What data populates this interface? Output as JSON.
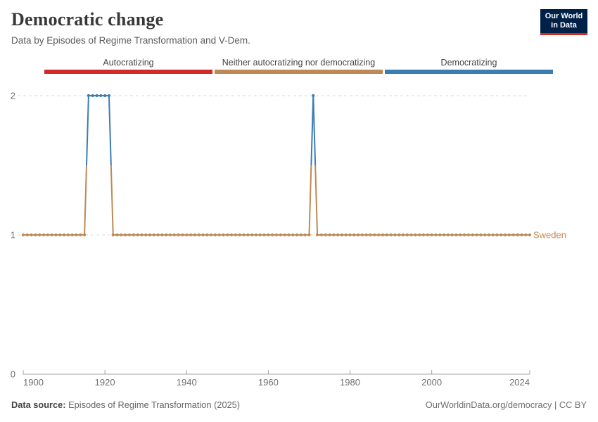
{
  "header": {
    "title": "Democratic change",
    "subtitle": "Data by Episodes of Regime Transformation and V-Dem.",
    "logo": {
      "line1": "Our World",
      "line2": "in Data",
      "bg_color": "#002147",
      "accent_color": "#d42b21"
    }
  },
  "legend": {
    "items": [
      {
        "label": "Autocratizing",
        "color": "#d22a28"
      },
      {
        "label": "Neither autocratizing nor democratizing",
        "color": "#bd8a55"
      },
      {
        "label": "Democratizing",
        "color": "#3a7cb4"
      }
    ]
  },
  "chart_data": {
    "type": "line",
    "title": "Democratic change",
    "xlabel": "",
    "ylabel": "",
    "xlim": [
      1900,
      2024
    ],
    "ylim": [
      0,
      2
    ],
    "x_ticks": [
      1900,
      1920,
      1940,
      1960,
      1980,
      2000,
      2024
    ],
    "y_ticks": [
      0,
      1,
      2
    ],
    "grid": "horizontal dashed gridlines at y=1 and y=2",
    "legend_position": "top categorical bins",
    "value_meaning": {
      "1": "Neither autocratizing nor democratizing",
      "2": "Democratizing"
    },
    "value_colors": {
      "1": "#bd8a55",
      "2": "#3a7cb4"
    },
    "episodes": [
      {
        "years": "1916-1921",
        "value": 2,
        "category": "Democratizing"
      },
      {
        "years": "1971",
        "value": 2,
        "category": "Democratizing"
      }
    ],
    "series": [
      {
        "name": "Sweden",
        "label_color": "#bd8a55",
        "x_start": 1900,
        "x_step": 1,
        "values": [
          1,
          1,
          1,
          1,
          1,
          1,
          1,
          1,
          1,
          1,
          1,
          1,
          1,
          1,
          1,
          1,
          2,
          2,
          2,
          2,
          2,
          2,
          1,
          1,
          1,
          1,
          1,
          1,
          1,
          1,
          1,
          1,
          1,
          1,
          1,
          1,
          1,
          1,
          1,
          1,
          1,
          1,
          1,
          1,
          1,
          1,
          1,
          1,
          1,
          1,
          1,
          1,
          1,
          1,
          1,
          1,
          1,
          1,
          1,
          1,
          1,
          1,
          1,
          1,
          1,
          1,
          1,
          1,
          1,
          1,
          1,
          2,
          1,
          1,
          1,
          1,
          1,
          1,
          1,
          1,
          1,
          1,
          1,
          1,
          1,
          1,
          1,
          1,
          1,
          1,
          1,
          1,
          1,
          1,
          1,
          1,
          1,
          1,
          1,
          1,
          1,
          1,
          1,
          1,
          1,
          1,
          1,
          1,
          1,
          1,
          1,
          1,
          1,
          1,
          1,
          1,
          1,
          1,
          1,
          1,
          1,
          1,
          1,
          1,
          1
        ]
      }
    ]
  },
  "footer": {
    "source_label": "Data source:",
    "source_value": "Episodes of Regime Transformation (2025)",
    "attribution": "OurWorldinData.org/democracy | CC BY"
  },
  "theme": {
    "gridline_color": "#dadada",
    "axis_color": "#a3a3a3",
    "tick_label_color": "#6e6e6e"
  }
}
